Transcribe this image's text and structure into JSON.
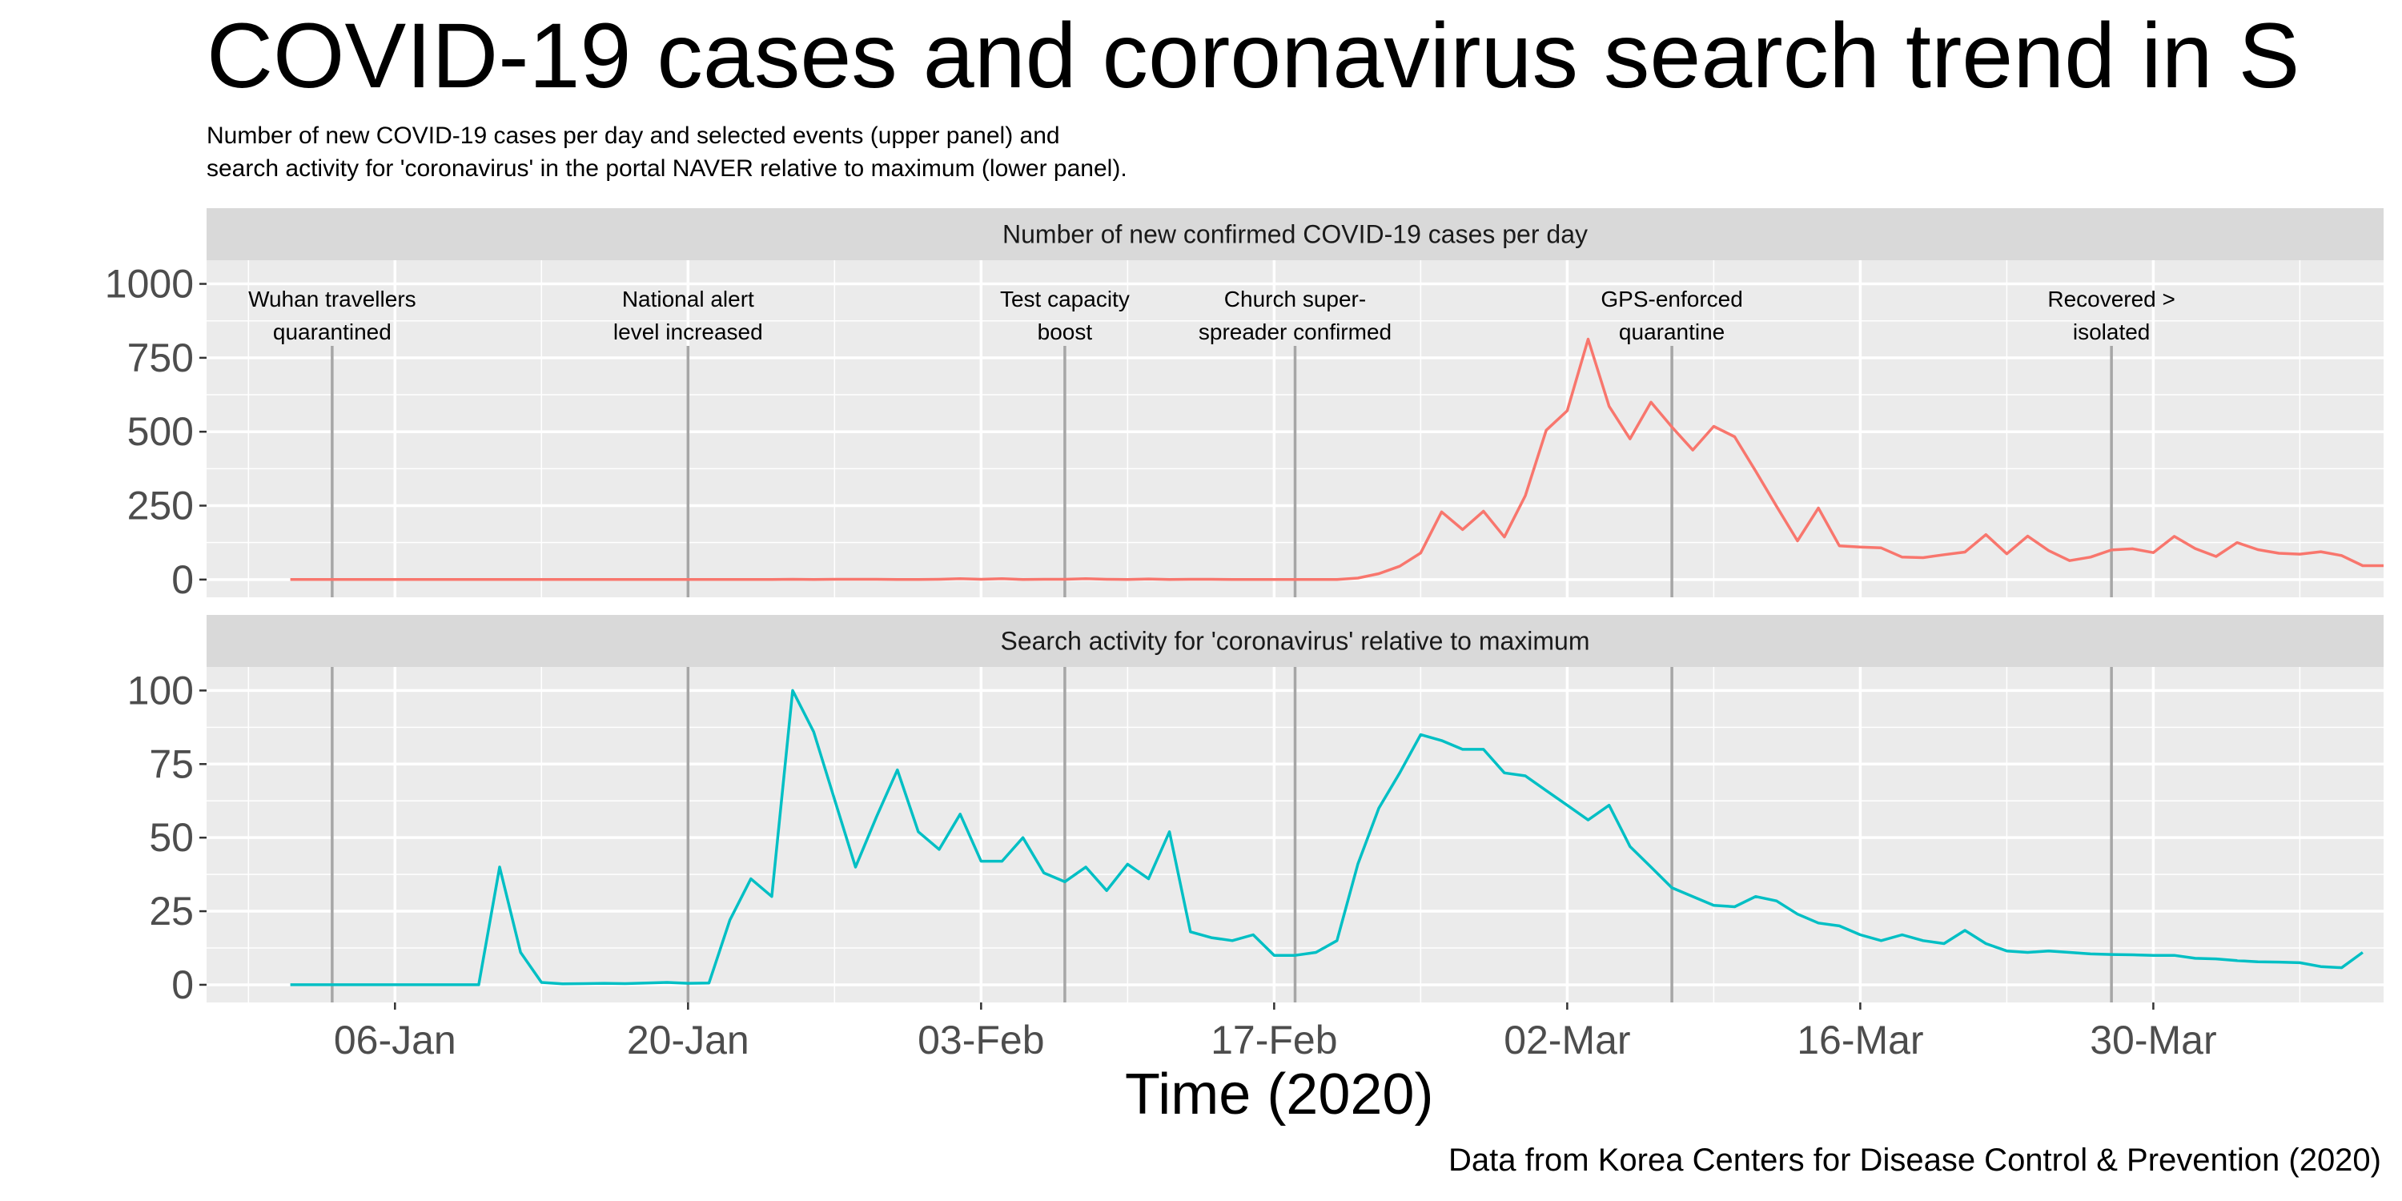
{
  "chart_data": {
    "type": "line",
    "title": "COVID-19 cases and coronavirus search trend in S",
    "subtitle_lines": [
      "Number of new COVID-19 cases per day and selected events (upper panel) and",
      "search activity for 'coronavirus' in the portal NAVER relative to maximum (lower panel)."
    ],
    "xlabel": "Time (2020)",
    "caption": "Data from Korea Centers for Disease Control & Prevention (2020)",
    "x_start_date": "2020-01-01",
    "x_ticks": [
      {
        "label": "06-Jan",
        "date": "2020-01-06"
      },
      {
        "label": "20-Jan",
        "date": "2020-01-20"
      },
      {
        "label": "03-Feb",
        "date": "2020-02-03"
      },
      {
        "label": "17-Feb",
        "date": "2020-02-17"
      },
      {
        "label": "02-Mar",
        "date": "2020-03-02"
      },
      {
        "label": "16-Mar",
        "date": "2020-03-16"
      },
      {
        "label": "30-Mar",
        "date": "2020-03-30"
      }
    ],
    "xlim": [
      "2019-12-28",
      "2020-04-10"
    ],
    "events": [
      {
        "date": "2020-01-03",
        "label_lines": [
          "Wuhan travellers",
          "quarantined"
        ]
      },
      {
        "date": "2020-01-20",
        "label_lines": [
          "National alert",
          "level increased"
        ]
      },
      {
        "date": "2020-02-07",
        "label_lines": [
          "Test capacity",
          "boost"
        ]
      },
      {
        "date": "2020-02-18",
        "label_lines": [
          "Church super-",
          "spreader confirmed"
        ]
      },
      {
        "date": "2020-03-07",
        "label_lines": [
          "GPS-enforced",
          "quarantine"
        ]
      },
      {
        "date": "2020-03-28",
        "label_lines": [
          "Recovered >",
          "isolated"
        ]
      }
    ],
    "panels": [
      {
        "strip": "Number of new confirmed COVID-19 cases per day",
        "ylim": [
          -60,
          1080
        ],
        "y_ticks": [
          0,
          250,
          500,
          750,
          1000
        ],
        "color": "#F8766D",
        "series_name": "",
        "start_date": "2020-01-01",
        "values": [
          0,
          0,
          0,
          0,
          0,
          0,
          0,
          0,
          0,
          0,
          0,
          0,
          0,
          0,
          0,
          0,
          0,
          0,
          0,
          0,
          0,
          0,
          0,
          0,
          1,
          0,
          1,
          1,
          1,
          0,
          0,
          1,
          3,
          1,
          3,
          0,
          1,
          1,
          3,
          1,
          0,
          2,
          0,
          1,
          1,
          0,
          0,
          0,
          0,
          0,
          0,
          5,
          20,
          45,
          90,
          229,
          169,
          231,
          144,
          284,
          505,
          571,
          813,
          586,
          476,
          600,
          516,
          438,
          518,
          483,
          367,
          248,
          131,
          242,
          114,
          110,
          107,
          76,
          74,
          84,
          93,
          152,
          87,
          147,
          98,
          64,
          76,
          100,
          104,
          91,
          146,
          105,
          78,
          125,
          101,
          89,
          86,
          94,
          81,
          47,
          47
        ]
      },
      {
        "strip": "Search activity for 'coronavirus' relative to maximum",
        "ylim": [
          -6,
          108
        ],
        "y_ticks": [
          0,
          25,
          50,
          75,
          100
        ],
        "color": "#00BFC4",
        "series_name": "",
        "start_date": "2020-01-01",
        "values": [
          0,
          0,
          0,
          0,
          0,
          0,
          0,
          0,
          0,
          0,
          40,
          11,
          0.8,
          0.3,
          0.4,
          0.5,
          0.4,
          0.6,
          0.8,
          0.5,
          0.6,
          22,
          36,
          30,
          100,
          86,
          63,
          40,
          57,
          73,
          52,
          46,
          58,
          42,
          42,
          50,
          38,
          35,
          40,
          32,
          41,
          36,
          52,
          18,
          16,
          15,
          17,
          10,
          10,
          11,
          15,
          41,
          60,
          72,
          85,
          83,
          80,
          80,
          72,
          71,
          66,
          61,
          56,
          61,
          47,
          40,
          33,
          30,
          27,
          26.5,
          30,
          28.5,
          24,
          21,
          20,
          17,
          15,
          17,
          15,
          14,
          18.5,
          14,
          11.5,
          11,
          11.5,
          11,
          10.5,
          10.3,
          10.2,
          10,
          10,
          9,
          8.8,
          8.2,
          7.8,
          7.7,
          7.5,
          6.2,
          5.8,
          11
        ]
      }
    ]
  }
}
